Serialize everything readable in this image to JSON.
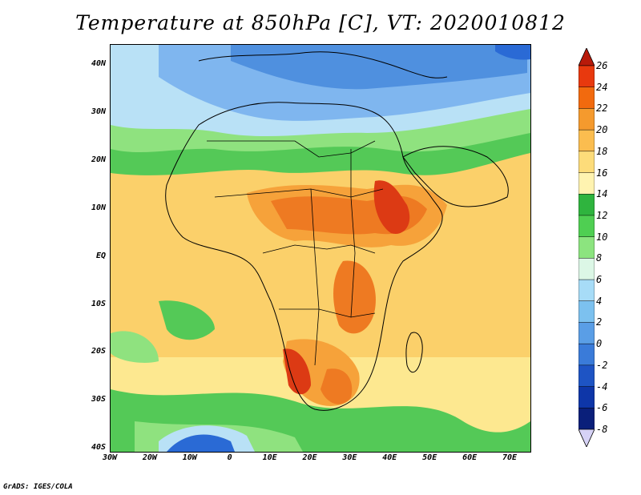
{
  "title": "Temperature at 850hPa [C], VT: 2020010812",
  "credit": "GrADS: IGES/COLA",
  "lat_labels": [
    "40N",
    "30N",
    "20N",
    "10N",
    "EQ",
    "10S",
    "20S",
    "30S",
    "40S"
  ],
  "lon_labels": [
    "30W",
    "20W",
    "10W",
    "0",
    "10E",
    "20E",
    "30E",
    "40E",
    "50E",
    "60E",
    "70E"
  ],
  "colorbar": {
    "labels": [
      "26",
      "24",
      "22",
      "20",
      "18",
      "16",
      "14",
      "12",
      "10",
      "8",
      "6",
      "4",
      "2",
      "0",
      "-2",
      "-4",
      "-6",
      "-8"
    ],
    "colors": [
      "#b81a0a",
      "#e8390e",
      "#f26a0e",
      "#f59a2d",
      "#fbbd4f",
      "#fddc7a",
      "#fff3b0",
      "#2fb43e",
      "#4fcf52",
      "#8ce47f",
      "#dcf7e6",
      "#a7dcf7",
      "#7cc1ef",
      "#5a9ee6",
      "#3a7bd9",
      "#1e54c4",
      "#0e36a8",
      "#0a1f7a",
      "#d6d2f6"
    ]
  },
  "map": {
    "extent": {
      "lon": [
        -30,
        75
      ],
      "lat": [
        -40,
        45
      ]
    },
    "colors": {
      "cold_high": "#4f90df",
      "cold": "#7fb6ef",
      "cool": "#b9e1f6",
      "green": "#54c957",
      "green_light": "#8fe27f",
      "yellow": "#fde890",
      "yellow_dark": "#fbd06a",
      "orange": "#f6a23a",
      "orange_dark": "#ee7a22",
      "red": "#dc3a14",
      "ocean_blue": "#2a6ad5"
    }
  }
}
